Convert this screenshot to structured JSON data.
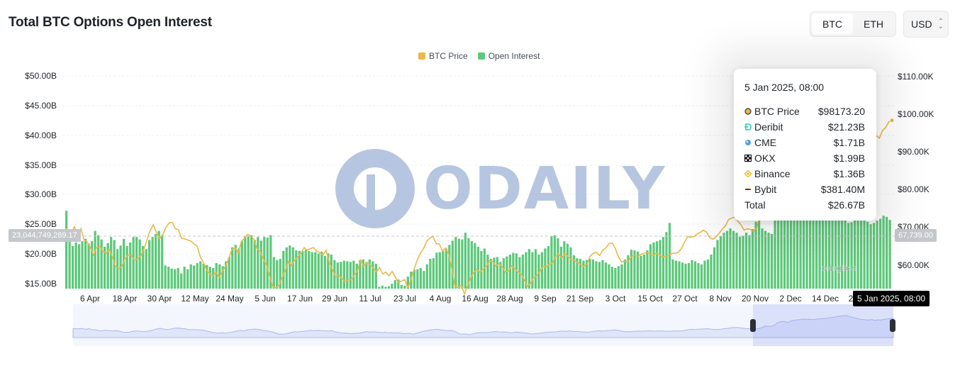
{
  "header": {
    "title": "Total BTC Options Open Interest"
  },
  "asset_toggle": {
    "options": [
      "BTC",
      "ETH"
    ],
    "selected": "BTC"
  },
  "currency_select": {
    "value": "USD"
  },
  "legend": [
    {
      "label": "BTC Price",
      "color": "#e9b949"
    },
    {
      "label": "Open Interest",
      "color": "#5cc87a"
    }
  ],
  "crosshair": {
    "left_value": "23,044,749,289.17",
    "right_value": "67,739.00",
    "date": "5 Jan 2025, 08:00"
  },
  "tooltip": {
    "date": "5 Jan 2025, 08:00",
    "rows": [
      {
        "label": "BTC Price",
        "value": "$98173.20",
        "icon": "btc-price-dot-icon"
      },
      {
        "label": "Deribit",
        "value": "$21.23B",
        "icon": "deribit-icon"
      },
      {
        "label": "CME",
        "value": "$1.71B",
        "icon": "cme-icon"
      },
      {
        "label": "OKX",
        "value": "$1.99B",
        "icon": "okx-icon"
      },
      {
        "label": "Binance",
        "value": "$1.36B",
        "icon": "binance-icon"
      },
      {
        "label": "Bybit",
        "value": "$381.40M",
        "icon": "bybit-icon"
      },
      {
        "label": "Total",
        "value": "$26.67B",
        "icon": ""
      }
    ]
  },
  "watermark": {
    "text": "ODAILY",
    "brand": "coinglass"
  },
  "chart_data": {
    "type": "bar",
    "x_tick_labels": [
      "6 Apr",
      "18 Apr",
      "30 Apr",
      "12 May",
      "24 May",
      "5 Jun",
      "17 Jun",
      "29 Jun",
      "11 Jul",
      "23 Jul",
      "4 Aug",
      "16 Aug",
      "28 Aug",
      "9 Sep",
      "21 Sep",
      "3 Oct",
      "15 Oct",
      "27 Oct",
      "8 Nov",
      "20 Nov",
      "2 Dec",
      "14 Dec",
      "2"
    ],
    "y_left": {
      "ticks": [
        "$50.00B",
        "$45.00B",
        "$40.00B",
        "$35.00B",
        "$30.00B",
        "$25.00B",
        "$20.00B",
        "$15.00B"
      ],
      "range": [
        15,
        50
      ],
      "unit": "USD billions"
    },
    "y_right": {
      "ticks": [
        "$110.00K",
        "$100.00K",
        "$90.00K",
        "$80.00K",
        "$70.00K",
        "$60.00K"
      ],
      "range": [
        52,
        112
      ],
      "unit": "USD thousands"
    },
    "series": [
      {
        "name": "Open Interest",
        "axis": "left",
        "values": [
          27.8,
          23.1,
          22.0,
          22.6,
          22.3,
          22.8,
          23.2,
          22.4,
          22.8,
          24.5,
          23.8,
          23.1,
          21.9,
          22.5,
          23.5,
          23.0,
          21.5,
          22.1,
          23.2,
          22.0,
          22.6,
          23.5,
          23.5,
          23.1,
          22.0,
          21.5,
          23.0,
          23.5,
          24.0,
          24.5,
          23.8,
          18.8,
          18.6,
          18.3,
          18.2,
          18.4,
          17.5,
          18.6,
          18.2,
          19.0,
          18.8,
          19.2,
          19.5,
          19.1,
          18.9,
          18.6,
          18.4,
          19.2,
          19.0,
          18.7,
          19.5,
          20.2,
          21.8,
          22.2,
          21.6,
          22.9,
          23.6,
          23.7,
          23.8,
          23.0,
          23.5,
          22.9,
          23.5,
          23.4,
          23.8,
          20.2,
          19.7,
          19.9,
          21.2,
          21.8,
          22.1,
          21.8,
          21.3,
          21.2,
          21.2,
          21.4,
          21.2,
          21.0,
          21.0,
          20.8,
          21.1,
          20.4,
          20.8,
          20.6,
          19.7,
          19.3,
          19.4,
          19.6,
          19.5,
          19.4,
          19.6,
          19.1,
          19.7,
          19.8,
          19.4,
          19.8,
          19.5,
          19.1,
          15.3,
          15.5,
          15.3,
          15.4,
          15.8,
          16.4,
          16.5,
          15.6,
          15.5,
          17.0,
          17.8,
          18.1,
          18.2,
          18.4,
          17.9,
          19.0,
          19.9,
          20.0,
          20.9,
          21.0,
          21.2,
          21.6,
          22.2,
          22.9,
          23.5,
          23.2,
          23.1,
          24.2,
          23.3,
          22.8,
          22.5,
          21.9,
          21.2,
          21.6,
          20.6,
          19.9,
          20.1,
          20.2,
          19.4,
          20.0,
          20.3,
          20.6,
          20.9,
          20.8,
          20.2,
          20.6,
          21.0,
          21.5,
          21.0,
          21.5,
          20.6,
          21.0,
          21.6,
          22.0,
          23.6,
          23.8,
          23.3,
          21.9,
          22.8,
          22.4,
          21.8,
          20.5,
          20.0,
          19.9,
          19.6,
          19.7,
          19.9,
          19.8,
          19.5,
          19.4,
          19.7,
          19.3,
          19.0,
          18.6,
          18.4,
          18.7,
          19.0,
          19.8,
          20.5,
          21.4,
          21.3,
          21.1,
          20.4,
          20.6,
          21.3,
          22.3,
          22.6,
          22.8,
          23.0,
          23.5,
          24.3,
          25.8,
          19.8,
          19.6,
          19.5,
          19.3,
          19.1,
          19.2,
          19.7,
          19.5,
          19.2,
          19.0,
          19.6,
          19.8,
          20.6,
          21.8,
          23.0,
          23.6,
          24.2,
          24.5,
          24.9,
          24.5,
          24.2,
          23.5,
          23.7,
          24.2,
          23.8,
          24.8,
          26.0,
          27.0,
          24.9,
          24.5,
          24.2,
          24.0,
          27.5,
          29.2,
          30.5,
          32.3,
          33.4,
          27.2,
          26.8,
          27.1,
          26.5,
          26.9,
          27.0,
          27.5,
          27.9,
          28.0,
          27.5,
          27.8,
          28.2,
          27.2,
          26.9,
          27.0,
          27.5,
          28.0,
          26.5,
          25.8,
          25.9,
          26.3,
          26.5,
          26.8,
          27.1,
          26.0,
          25.6,
          25.8,
          26.2,
          26.5,
          27.0,
          26.8,
          26.3
        ],
        "color": "#5cc87a"
      },
      {
        "name": "BTC Price",
        "axis": "right",
        "values": [
          69.5,
          69.0,
          68.8,
          70.0,
          67.5,
          69.5,
          66.5,
          66.0,
          64.5,
          62.5,
          64.5,
          64.8,
          63.5,
          63.0,
          64.0,
          62.0,
          59.5,
          59.0,
          59.5,
          61.5,
          62.5,
          62.5,
          61.2,
          61.5,
          62.2,
          64.0,
          66.5,
          69.0,
          70.5,
          68.5,
          66.8,
          67.8,
          69.8,
          71.0,
          71.2,
          69.5,
          69.2,
          67.0,
          66.8,
          66.5,
          66.2,
          65.5,
          64.8,
          62.0,
          60.5,
          58.5,
          57.5,
          57.0,
          58.0,
          56.5,
          58.3,
          59.6,
          61.5,
          64.0,
          64.5,
          63.0,
          66.0,
          67.0,
          68.0,
          67.6,
          66.7,
          64.2,
          63.5,
          61.5,
          60.0,
          57.0,
          54.2,
          53.8,
          54.5,
          56.5,
          58.5,
          60.8,
          59.8,
          61.2,
          62.0,
          63.0,
          64.5,
          63.8,
          64.2,
          64.5,
          63.5,
          63.2,
          62.5,
          63.8,
          60.5,
          58.7,
          56.8,
          57.2,
          56.3,
          55.5,
          55.9,
          56.0,
          57.2,
          58.5,
          61.2,
          59.5,
          60.5,
          60.0,
          59.0,
          58.0,
          59.2,
          57.5,
          58.0,
          57.0,
          58.2,
          56.7,
          55.3,
          55.6,
          56.0,
          53.8,
          56.0,
          58.8,
          61.2,
          63.0,
          64.2,
          66.2,
          67.0,
          67.5,
          65.5,
          65.5,
          63.6,
          64.4,
          62.7,
          58.8,
          54.2,
          53.9,
          54.5,
          52.2,
          54.3,
          56.5,
          58.0,
          58.7,
          57.9,
          58.8,
          59.6,
          61.0,
          60.8,
          59.6,
          60.2,
          59.4,
          58.0,
          58.3,
          59.6,
          59.0,
          58.0,
          57.5,
          56.0,
          54.2,
          55.0,
          56.5,
          57.0,
          58.2,
          59.5,
          59.4,
          60.0,
          60.4,
          62.2,
          62.8,
          61.7,
          62.9,
          62.1,
          61.2,
          61.1,
          60.5,
          60.0,
          59.5,
          60.2,
          62.2,
          63.0,
          63.2,
          62.4,
          63.8,
          64.4,
          65.5,
          65.7,
          64.3,
          62.0,
          60.7,
          60.9,
          60.7,
          62.0,
          62.5,
          62.2,
          62.6,
          62.9,
          63.3,
          62.8,
          62.4,
          63.0,
          62.6,
          62.0,
          62.2,
          62.4,
          62.9,
          63.0,
          63.2,
          64.2,
          65.9,
          67.4,
          67.2,
          67.4,
          68.1,
          68.5,
          69.1,
          68.6,
          67.2,
          66.7,
          67.3,
          68.2,
          69.4,
          70.2,
          71.9,
          72.3,
          72.6,
          71.5,
          70.5,
          69.1,
          69.5,
          69.3,
          68.8,
          69.8,
          72.9,
          76.6,
          75.8,
          76.2,
          79.9,
          87.0,
          89.1,
          89.8,
          87.0,
          90.0,
          92.5,
          94.0,
          94.5,
          96.2,
          95.5,
          96.0,
          94.5,
          95.5,
          96.8,
          97.0,
          97.5,
          99.5,
          100.5,
          101.5,
          103.5,
          104.5,
          105.8,
          106.1,
          103.2,
          101.0,
          98.8,
          96.5,
          95.1,
          94.3,
          93.5,
          95.0,
          92.8,
          94.2,
          93.5,
          95.5,
          96.3,
          97.8,
          98.2
        ],
        "color": "#e9b949"
      }
    ],
    "grid": true,
    "legend_position": "top-center"
  }
}
